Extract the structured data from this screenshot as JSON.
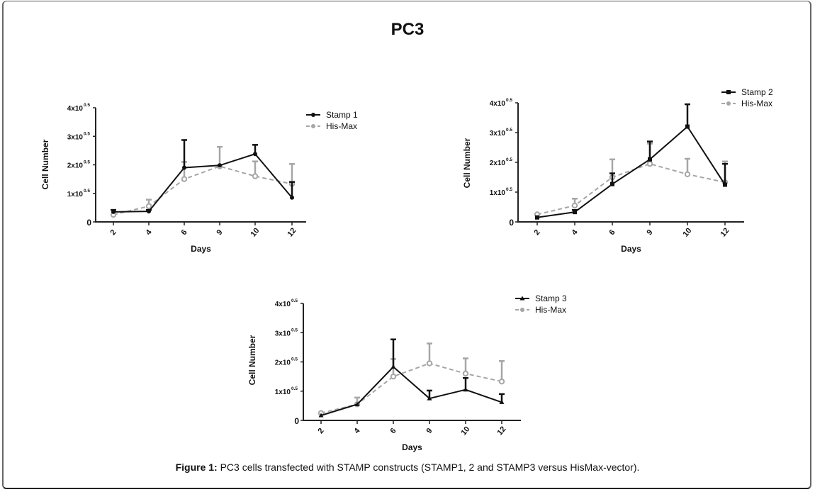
{
  "figure": {
    "title": "PC3",
    "caption_label": "Figure 1:",
    "caption_text": " PC3 cells transfected with STAMP constructs (STAMP1, 2 and STAMP3 versus HisMax-vector)."
  },
  "colors": {
    "stamp": "#111111",
    "hismax": "#a6a6a6"
  },
  "chart_data": [
    {
      "type": "line",
      "title": "",
      "xlabel": "Days",
      "ylabel": "Cell Number",
      "categories": [
        "2",
        "4",
        "6",
        "9",
        "10",
        "12"
      ],
      "yticks": [
        "0",
        "1x10",
        "2x10",
        "3x10",
        "4x10"
      ],
      "ytick_exponent": "0.5",
      "ylim": [
        0,
        4
      ],
      "grid": false,
      "legend": "top-right",
      "series": [
        {
          "name": "Stamp 1",
          "marker": "circle",
          "style": "solid",
          "values": [
            0.35,
            0.37,
            1.9,
            1.98,
            2.38,
            0.85
          ],
          "err_upper": [
            0.42,
            0.42,
            2.87,
            1.98,
            2.7,
            1.4
          ]
        },
        {
          "name": "His-Max",
          "marker": "circle-open",
          "style": "dashed",
          "values": [
            0.25,
            0.55,
            1.5,
            1.95,
            1.6,
            1.33
          ],
          "err_upper": [
            0.25,
            0.78,
            2.1,
            2.63,
            2.12,
            2.03
          ]
        }
      ]
    },
    {
      "type": "line",
      "title": "",
      "xlabel": "Days",
      "ylabel": "Cell Number",
      "categories": [
        "2",
        "4",
        "6",
        "9",
        "10",
        "12"
      ],
      "yticks": [
        "0",
        "1x10",
        "2x10",
        "3x10",
        "4x10"
      ],
      "ytick_exponent": "0.5",
      "ylim": [
        0,
        4
      ],
      "grid": false,
      "legend": "top-right",
      "series": [
        {
          "name": "Stamp 2",
          "marker": "square",
          "style": "solid",
          "values": [
            0.15,
            0.33,
            1.27,
            2.1,
            3.2,
            1.25
          ],
          "err_upper": [
            0.15,
            0.4,
            1.63,
            2.7,
            3.95,
            1.95
          ]
        },
        {
          "name": "His-Max",
          "marker": "circle-open",
          "style": "dashed",
          "values": [
            0.25,
            0.55,
            1.5,
            1.95,
            1.6,
            1.33
          ],
          "err_upper": [
            0.25,
            0.78,
            2.1,
            2.63,
            2.12,
            2.03
          ]
        }
      ]
    },
    {
      "type": "line",
      "title": "",
      "xlabel": "Days",
      "ylabel": "Cell Number",
      "categories": [
        "2",
        "4",
        "6",
        "9",
        "10",
        "12"
      ],
      "yticks": [
        "0",
        "1x10",
        "2x10",
        "3x10",
        "4x10"
      ],
      "ytick_exponent": "0.5",
      "ylim": [
        0,
        4
      ],
      "grid": false,
      "legend": "top-right",
      "series": [
        {
          "name": "Stamp 3",
          "marker": "triangle",
          "style": "solid",
          "values": [
            0.17,
            0.55,
            1.83,
            0.75,
            1.05,
            0.62
          ],
          "err_upper": [
            0.17,
            0.55,
            2.77,
            1.02,
            1.45,
            0.9
          ]
        },
        {
          "name": "His-Max",
          "marker": "circle-open",
          "style": "dashed",
          "values": [
            0.25,
            0.55,
            1.5,
            1.95,
            1.6,
            1.33
          ],
          "err_upper": [
            0.25,
            0.78,
            2.1,
            2.63,
            2.12,
            2.03
          ]
        }
      ]
    }
  ]
}
